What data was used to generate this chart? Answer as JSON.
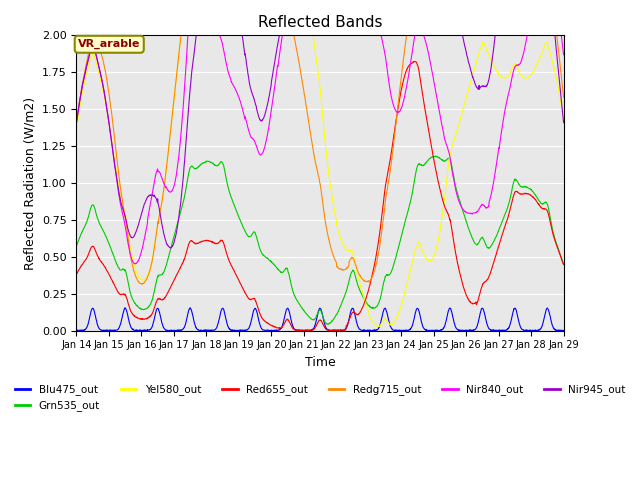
{
  "title": "Reflected Bands",
  "xlabel": "Time",
  "ylabel": "Reflected Radiation (W/m2)",
  "annotation": "VR_arable",
  "ylim": [
    0,
    2.0
  ],
  "xlim_start": 14,
  "xlim_end": 29,
  "xtick_positions": [
    14,
    15,
    16,
    17,
    18,
    19,
    20,
    21,
    22,
    23,
    24,
    25,
    26,
    27,
    28,
    29
  ],
  "xtick_labels": [
    "Jan 14",
    "Jan 15",
    "Jan 16",
    "Jan 17",
    "Jan 18",
    "Jan 19",
    "Jan 20",
    "Jan 21",
    "Jan 22",
    "Jan 23",
    "Jan 24",
    "Jan 25",
    "Jan 26",
    "Jan 27",
    "Jan 28",
    "Jan 29"
  ],
  "series": [
    {
      "name": "Blu475_out",
      "color": "#0000FF",
      "lw": 0.8
    },
    {
      "name": "Grn535_out",
      "color": "#00CC00",
      "lw": 0.8
    },
    {
      "name": "Yel580_out",
      "color": "#FFFF00",
      "lw": 0.8
    },
    {
      "name": "Red655_out",
      "color": "#FF0000",
      "lw": 0.8
    },
    {
      "name": "Redg715_out",
      "color": "#FF8800",
      "lw": 0.8
    },
    {
      "name": "Nir840_out",
      "color": "#FF00FF",
      "lw": 0.8
    },
    {
      "name": "Nir945_out",
      "color": "#9900CC",
      "lw": 0.8
    }
  ],
  "bg_color": "#E8E8E8",
  "seed": 42
}
